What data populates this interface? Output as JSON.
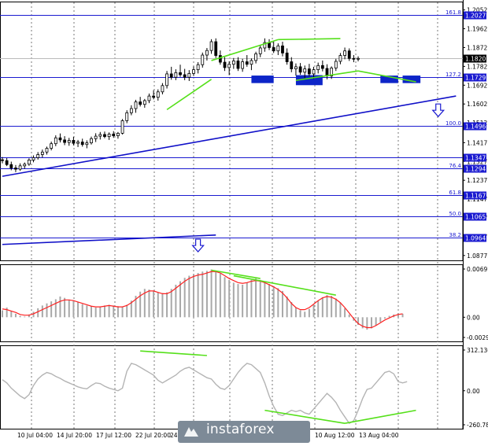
{
  "chart_data": [
    {
      "type": "candlestick",
      "title": "",
      "ylim": [
        1.085,
        1.2092
      ],
      "y_ticks": [
        "1.2052",
        "1.1962",
        "1.1872",
        "1.1782",
        "1.1692",
        "1.1602",
        "1.1512",
        "1.1417",
        "1.1327",
        "1.1237",
        "1.1147",
        "1.1057",
        "1.0967",
        "1.0877"
      ],
      "fib_levels": [
        {
          "ratio": "161.8",
          "price": "1.2027",
          "value": 1.2027
        },
        {
          "ratio": "127.2",
          "price": "1.1729",
          "value": 1.1729
        },
        {
          "ratio": "100.0",
          "price": "1.1496",
          "value": 1.1496
        },
        {
          "ratio": "",
          "price": "1.1347",
          "value": 1.1347
        },
        {
          "ratio": "76.4",
          "price": "1.1294",
          "value": 1.1294
        },
        {
          "ratio": "61.8",
          "price": "1.1167",
          "value": 1.1167
        },
        {
          "ratio": "50.0",
          "price": "1.1065",
          "value": 1.1065
        },
        {
          "ratio": "38.2",
          "price": "1.0964",
          "value": 1.0964
        }
      ],
      "current_price": {
        "label": "1.1820",
        "value": 1.182
      },
      "candles": [
        [
          1.1335,
          1.1348,
          1.1318,
          1.1331
        ],
        [
          1.1331,
          1.1343,
          1.1305,
          1.1312
        ],
        [
          1.1312,
          1.1326,
          1.1285,
          1.1296
        ],
        [
          1.1296,
          1.131,
          1.1276,
          1.129
        ],
        [
          1.129,
          1.1318,
          1.1282,
          1.1306
        ],
        [
          1.1306,
          1.1322,
          1.1292,
          1.1314
        ],
        [
          1.1314,
          1.1342,
          1.1306,
          1.1334
        ],
        [
          1.1334,
          1.1356,
          1.1323,
          1.1345
        ],
        [
          1.1345,
          1.1372,
          1.1336,
          1.136
        ],
        [
          1.136,
          1.1384,
          1.1346,
          1.1372
        ],
        [
          1.1372,
          1.1398,
          1.136,
          1.139
        ],
        [
          1.139,
          1.1422,
          1.138,
          1.1412
        ],
        [
          1.1412,
          1.1452,
          1.14,
          1.144
        ],
        [
          1.144,
          1.1461,
          1.1418,
          1.143
        ],
        [
          1.143,
          1.1448,
          1.1405,
          1.1418
        ],
        [
          1.1418,
          1.144,
          1.1402,
          1.1428
        ],
        [
          1.1428,
          1.1445,
          1.1404,
          1.1414
        ],
        [
          1.1414,
          1.143,
          1.1396,
          1.142
        ],
        [
          1.142,
          1.1436,
          1.1398,
          1.1408
        ],
        [
          1.1408,
          1.1428,
          1.139,
          1.1416
        ],
        [
          1.1416,
          1.1446,
          1.1408,
          1.1436
        ],
        [
          1.1436,
          1.1462,
          1.142,
          1.1448
        ],
        [
          1.1448,
          1.1468,
          1.1432,
          1.1456
        ],
        [
          1.1456,
          1.147,
          1.1438,
          1.1446
        ],
        [
          1.1446,
          1.1466,
          1.143,
          1.1458
        ],
        [
          1.1458,
          1.1472,
          1.144,
          1.145
        ],
        [
          1.145,
          1.1468,
          1.1436,
          1.1462
        ],
        [
          1.1462,
          1.153,
          1.1456,
          1.1522
        ],
        [
          1.1522,
          1.1572,
          1.151,
          1.156
        ],
        [
          1.156,
          1.1596,
          1.1548,
          1.158
        ],
        [
          1.158,
          1.1622,
          1.156,
          1.1612
        ],
        [
          1.1612,
          1.1636,
          1.159,
          1.16
        ],
        [
          1.16,
          1.1626,
          1.1584,
          1.1618
        ],
        [
          1.1618,
          1.1652,
          1.1606,
          1.164
        ],
        [
          1.164,
          1.1668,
          1.1624,
          1.1634
        ],
        [
          1.1634,
          1.1672,
          1.1618,
          1.166
        ],
        [
          1.166,
          1.1702,
          1.1648,
          1.169
        ],
        [
          1.169,
          1.176,
          1.1676,
          1.1746
        ],
        [
          1.1746,
          1.178,
          1.1718,
          1.173
        ],
        [
          1.173,
          1.1768,
          1.1716,
          1.1752
        ],
        [
          1.1752,
          1.179,
          1.1732,
          1.1742
        ],
        [
          1.1742,
          1.177,
          1.1716,
          1.173
        ],
        [
          1.173,
          1.1764,
          1.1712,
          1.1748
        ],
        [
          1.1748,
          1.1782,
          1.1736,
          1.1766
        ],
        [
          1.1766,
          1.1802,
          1.1748,
          1.179
        ],
        [
          1.179,
          1.1848,
          1.1776,
          1.1836
        ],
        [
          1.1836,
          1.187,
          1.181,
          1.1858
        ],
        [
          1.1858,
          1.1912,
          1.1842,
          1.19
        ],
        [
          1.19,
          1.1916,
          1.1822,
          1.1834
        ],
        [
          1.1834,
          1.1858,
          1.179,
          1.1802
        ],
        [
          1.1802,
          1.1826,
          1.176,
          1.1776
        ],
        [
          1.1776,
          1.1806,
          1.174,
          1.1792
        ],
        [
          1.1792,
          1.1822,
          1.177,
          1.1808
        ],
        [
          1.1808,
          1.1826,
          1.176,
          1.1772
        ],
        [
          1.1772,
          1.1818,
          1.1756,
          1.1804
        ],
        [
          1.1804,
          1.1836,
          1.178,
          1.1792
        ],
        [
          1.1792,
          1.182,
          1.1764,
          1.181
        ],
        [
          1.181,
          1.1852,
          1.1796,
          1.1842
        ],
        [
          1.1842,
          1.1884,
          1.1826,
          1.187
        ],
        [
          1.187,
          1.1916,
          1.1852,
          1.1896
        ],
        [
          1.1896,
          1.1912,
          1.186,
          1.1872
        ],
        [
          1.1872,
          1.19,
          1.1846,
          1.1856
        ],
        [
          1.1856,
          1.1892,
          1.1836,
          1.188
        ],
        [
          1.188,
          1.19,
          1.183,
          1.1846
        ],
        [
          1.1846,
          1.1868,
          1.179,
          1.1804
        ],
        [
          1.1804,
          1.1826,
          1.1754,
          1.177
        ],
        [
          1.177,
          1.1796,
          1.1738,
          1.178
        ],
        [
          1.178,
          1.1798,
          1.1742,
          1.1754
        ],
        [
          1.1754,
          1.1786,
          1.1726,
          1.177
        ],
        [
          1.177,
          1.1794,
          1.1734,
          1.1746
        ],
        [
          1.1746,
          1.178,
          1.1722,
          1.1766
        ],
        [
          1.1766,
          1.18,
          1.1748,
          1.1786
        ],
        [
          1.1786,
          1.181,
          1.1758,
          1.1772
        ],
        [
          1.1772,
          1.1792,
          1.172,
          1.1736
        ],
        [
          1.1736,
          1.1782,
          1.1722,
          1.1774
        ],
        [
          1.1774,
          1.1818,
          1.176,
          1.1806
        ],
        [
          1.1806,
          1.1846,
          1.1792,
          1.1834
        ],
        [
          1.1834,
          1.1872,
          1.1816,
          1.1856
        ],
        [
          1.1856,
          1.1868,
          1.1808,
          1.182
        ],
        [
          1.182,
          1.1836,
          1.1802,
          1.1818
        ],
        [
          1.1818,
          1.183,
          1.1806,
          1.182
        ]
      ],
      "trend_lines": [
        {
          "color": "#1010c8",
          "from": [
            0,
            1.1256
          ],
          "to": [
            102,
            1.164
          ]
        },
        {
          "color": "#1010c8",
          "from": [
            0,
            1.093
          ],
          "to": [
            48,
            1.0975
          ]
        }
      ],
      "divergence_lines": [
        {
          "color": "#55e01a",
          "points": [
            [
              47,
              1.181
            ],
            [
              62,
              1.191
            ]
          ]
        },
        {
          "color": "#55e01a",
          "points": [
            [
              62,
              1.191
            ],
            [
              76,
              1.1915
            ]
          ]
        },
        {
          "color": "#55e01a",
          "points": [
            [
              66,
              1.1715
            ],
            [
              80,
              1.176
            ]
          ]
        },
        {
          "color": "#55e01a",
          "points": [
            [
              80,
              1.176
            ],
            [
              93,
              1.1708
            ]
          ]
        },
        {
          "color": "#55e01a",
          "points": [
            [
              37,
              1.1575
            ],
            [
              47,
              1.172
            ]
          ]
        }
      ],
      "support_boxes": [
        {
          "color": "#0d25c8",
          "x": [
            56,
            61
          ],
          "y": [
            1.1702,
            1.1738
          ]
        },
        {
          "color": "#0d25c8",
          "x": [
            66,
            72
          ],
          "y": [
            1.1692,
            1.174
          ]
        },
        {
          "color": "#0d25c8",
          "x": [
            85,
            89
          ],
          "y": [
            1.1702,
            1.1738
          ]
        },
        {
          "color": "#0d25c8",
          "x": [
            90,
            94
          ],
          "y": [
            1.1702,
            1.1738
          ]
        }
      ],
      "arrows": [
        {
          "direction": "down",
          "x": 98,
          "y": 1.1572
        },
        {
          "direction": "down",
          "x": 44,
          "y": 1.0925
        }
      ]
    },
    {
      "type": "histogram",
      "title": "",
      "ylim": [
        -0.00292,
        0.00697
      ],
      "y_ticks": [
        "0.00697",
        "0.00",
        "-0.00292"
      ],
      "bar_color": "#a8a8a8",
      "signal_color": "#ff2020",
      "bars": [
        0.001,
        0.0014,
        0.0009,
        0.0005,
        0.0002,
        0.0001,
        0.0004,
        0.0008,
        0.0013,
        0.0017,
        0.002,
        0.0023,
        0.0026,
        0.003,
        0.0028,
        0.0025,
        0.0024,
        0.0022,
        0.0019,
        0.0017,
        0.0016,
        0.0014,
        0.0015,
        0.0017,
        0.0018,
        0.0017,
        0.0016,
        0.0015,
        0.0018,
        0.0024,
        0.0031,
        0.0037,
        0.0041,
        0.004,
        0.0038,
        0.0036,
        0.0035,
        0.0036,
        0.0041,
        0.0047,
        0.0052,
        0.0057,
        0.006,
        0.0062,
        0.0064,
        0.0066,
        0.0067,
        0.0069,
        0.0067,
        0.0063,
        0.0058,
        0.0054,
        0.005,
        0.0048,
        0.0047,
        0.005,
        0.0054,
        0.0056,
        0.0054,
        0.0052,
        0.0048,
        0.0045,
        0.0042,
        0.0038,
        0.003,
        0.0022,
        0.0014,
        0.001,
        0.0008,
        0.0012,
        0.0018,
        0.0024,
        0.0029,
        0.0032,
        0.0031,
        0.0027,
        0.0021,
        0.0013,
        0.0004,
        -0.0005,
        -0.0011,
        -0.0016,
        -0.0018,
        -0.0016,
        -0.0012,
        -0.0007,
        -0.0002,
        0.0002,
        0.0004,
        0.0006,
        0.0005
      ],
      "signal": [
        0.0012,
        0.0011,
        0.0009,
        0.0007,
        0.0004,
        0.0003,
        0.0003,
        0.0005,
        0.0008,
        0.0011,
        0.0014,
        0.0017,
        0.002,
        0.0023,
        0.0025,
        0.0025,
        0.0024,
        0.0022,
        0.002,
        0.0018,
        0.0016,
        0.0015,
        0.0015,
        0.0016,
        0.0017,
        0.0016,
        0.0015,
        0.0015,
        0.0017,
        0.0021,
        0.0026,
        0.0031,
        0.0035,
        0.0038,
        0.0038,
        0.0036,
        0.0034,
        0.0034,
        0.0037,
        0.0042,
        0.0047,
        0.0052,
        0.0056,
        0.0059,
        0.0061,
        0.0062,
        0.0064,
        0.0066,
        0.0066,
        0.0064,
        0.006,
        0.0056,
        0.0053,
        0.005,
        0.0049,
        0.005,
        0.0052,
        0.0053,
        0.0052,
        0.005,
        0.0047,
        0.0044,
        0.004,
        0.0035,
        0.0028,
        0.002,
        0.0014,
        0.0011,
        0.0011,
        0.0014,
        0.0019,
        0.0024,
        0.0028,
        0.003,
        0.0029,
        0.0026,
        0.0021,
        0.0014,
        0.0006,
        -0.0002,
        -0.0009,
        -0.0013,
        -0.0015,
        -0.0015,
        -0.0012,
        -0.0008,
        -0.0004,
        -0.0001,
        0.0002,
        0.0004,
        0.0005
      ],
      "divergence_lines": [
        {
          "color": "#55e01a",
          "points": [
            [
              47,
              0.0068
            ],
            [
              58,
              0.0056
            ]
          ]
        },
        {
          "color": "#55e01a",
          "points": [
            [
              52,
              0.006
            ],
            [
              75,
              0.0032
            ]
          ]
        }
      ]
    },
    {
      "type": "line",
      "title": "",
      "ylim": [
        -260.7826,
        312.1363
      ],
      "y_ticks": [
        "312.1363",
        "0.00",
        "-260.7826"
      ],
      "line_color": "#b4b4b4",
      "values": [
        85,
        60,
        20,
        -10,
        -40,
        -60,
        -30,
        40,
        90,
        120,
        140,
        130,
        110,
        95,
        75,
        60,
        45,
        30,
        20,
        15,
        40,
        60,
        55,
        35,
        20,
        10,
        0,
        20,
        150,
        210,
        200,
        180,
        160,
        140,
        120,
        80,
        60,
        80,
        100,
        120,
        150,
        170,
        180,
        160,
        140,
        120,
        100,
        90,
        50,
        20,
        10,
        40,
        90,
        140,
        180,
        210,
        200,
        170,
        140,
        60,
        -40,
        -120,
        -180,
        -190,
        -170,
        -150,
        -160,
        -150,
        -170,
        -180,
        -140,
        -100,
        -60,
        -20,
        -50,
        -90,
        -150,
        -200,
        -250,
        -230,
        -150,
        -60,
        10,
        20,
        60,
        100,
        140,
        150,
        130,
        70,
        60,
        70
      ],
      "divergence_lines": [
        {
          "color": "#55e01a",
          "points": [
            [
              31,
              305
            ],
            [
              46,
              270
            ]
          ]
        },
        {
          "color": "#55e01a",
          "points": [
            [
              59,
              -150
            ],
            [
              77,
              -250
            ]
          ]
        },
        {
          "color": "#55e01a",
          "points": [
            [
              77,
              -250
            ],
            [
              93,
              -150
            ]
          ]
        }
      ]
    }
  ],
  "x_ticks": [
    "10 Jul 04:00",
    "14 Jul 20:00",
    "17 Jul 12:00",
    "22 Jul 20:00",
    "24",
    "10 Aug 12:00",
    "13 Aug 04:00"
  ],
  "watermark": {
    "text": "instaforex"
  }
}
